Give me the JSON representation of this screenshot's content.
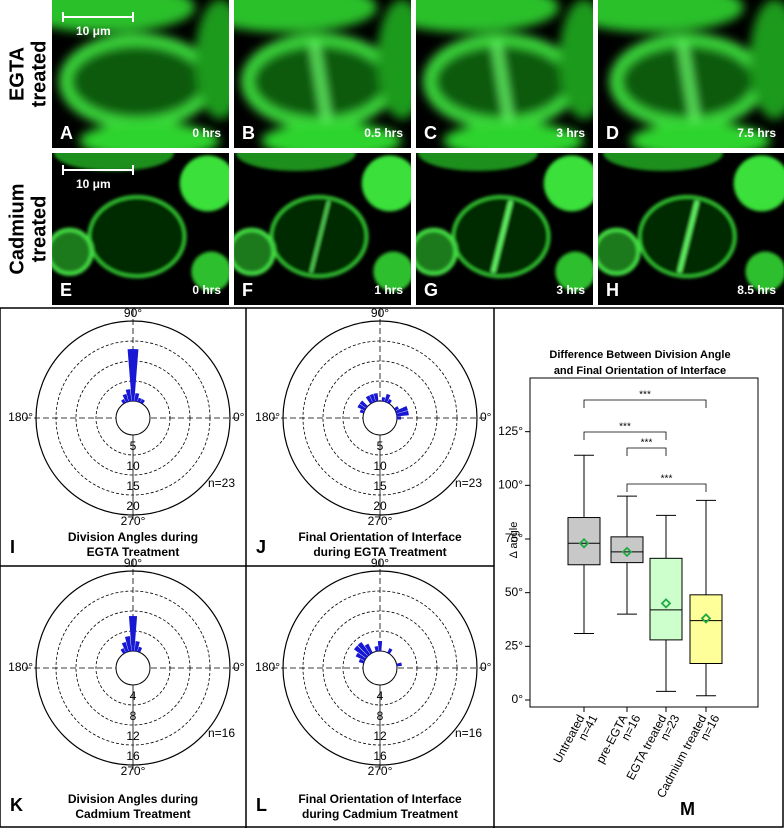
{
  "figure": {
    "rows": [
      {
        "label": [
          "EGTA",
          "treated"
        ],
        "scale_bar": "10 μm",
        "panels": [
          {
            "letter": "A",
            "time": "0 hrs"
          },
          {
            "letter": "B",
            "time": "0.5 hrs"
          },
          {
            "letter": "C",
            "time": "3 hrs"
          },
          {
            "letter": "D",
            "time": "7.5 hrs"
          }
        ]
      },
      {
        "label": [
          "Cadmium",
          "treated"
        ],
        "scale_bar": "10 μm",
        "panels": [
          {
            "letter": "E",
            "time": "0 hrs"
          },
          {
            "letter": "F",
            "time": "1 hrs"
          },
          {
            "letter": "G",
            "time": "3 hrs"
          },
          {
            "letter": "H",
            "time": "8.5 hrs"
          }
        ]
      }
    ]
  },
  "chart_data": [
    {
      "type": "rose",
      "letter": "I",
      "title": [
        "Division Angles during",
        "EGTA Treatment"
      ],
      "annotation": "n=23",
      "color": "#1818d4",
      "angles": [
        60,
        70,
        80,
        90,
        100,
        110,
        120
      ],
      "values": [
        1,
        1,
        2,
        13,
        3,
        2,
        1
      ],
      "rlim": [
        0,
        20
      ],
      "rticks": [
        5,
        10,
        15,
        20
      ],
      "angle_ticks": [
        {
          "value": 90,
          "label": "90°"
        },
        {
          "value": 0,
          "label": "0°"
        },
        {
          "value": 180,
          "label": "180°"
        },
        {
          "value": 270,
          "label": "270°"
        }
      ]
    },
    {
      "type": "rose",
      "letter": "J",
      "title": [
        "Final Orientation of Interface",
        "during EGTA Treatment"
      ],
      "annotation": "n=23",
      "color": "#1818d4",
      "angles": [
        0,
        10,
        20,
        30,
        60,
        70,
        80,
        100,
        110,
        120,
        140,
        150,
        160
      ],
      "values": [
        1,
        3,
        3,
        1,
        1,
        2,
        1,
        2,
        2,
        2,
        2,
        2,
        1
      ],
      "rlim": [
        0,
        20
      ],
      "rticks": [
        5,
        10,
        15,
        20
      ],
      "angle_ticks": [
        {
          "value": 90,
          "label": "90°"
        },
        {
          "value": 0,
          "label": "0°"
        },
        {
          "value": 180,
          "label": "180°"
        },
        {
          "value": 270,
          "label": "270°"
        }
      ]
    },
    {
      "type": "rose",
      "letter": "K",
      "title": [
        "Division Angles during",
        "Cadmium Treatment"
      ],
      "annotation": "n=16",
      "color": "#1818d4",
      "angles": [
        70,
        80,
        90,
        100,
        110,
        120
      ],
      "values": [
        1,
        2,
        7,
        3,
        2,
        1
      ],
      "rlim": [
        0,
        16
      ],
      "rticks": [
        4,
        8,
        12,
        16
      ],
      "angle_ticks": [
        {
          "value": 90,
          "label": "90°"
        },
        {
          "value": 0,
          "label": "0°"
        },
        {
          "value": 180,
          "label": "180°"
        },
        {
          "value": 270,
          "label": "270°"
        }
      ]
    },
    {
      "type": "rose",
      "letter": "L",
      "title": [
        "Final Orientation of Interface",
        "during Cadmium Treatment"
      ],
      "annotation": "n=16",
      "color": "#1818d4",
      "angles": [
        10,
        60,
        90,
        100,
        120,
        130,
        140,
        150,
        160
      ],
      "values": [
        1,
        1,
        2,
        1,
        2,
        3,
        3,
        2,
        1
      ],
      "rlim": [
        0,
        16
      ],
      "rticks": [
        4,
        8,
        12,
        16
      ],
      "angle_ticks": [
        {
          "value": 90,
          "label": "90°"
        },
        {
          "value": 0,
          "label": "0°"
        },
        {
          "value": 180,
          "label": "180°"
        },
        {
          "value": 270,
          "label": "270°"
        }
      ]
    },
    {
      "type": "box",
      "letter": "M",
      "title": [
        "Difference Between Division Angle",
        "and Final Orientation of Interface"
      ],
      "y_label": "Δ angle",
      "categories": [
        "Untreated",
        "pre-EGTA",
        "EGTA treated",
        "Cadmium treated"
      ],
      "n_labels": [
        "n=41",
        "n=16",
        "n=23",
        "n=16"
      ],
      "colors": [
        "#c8c8c8",
        "#c8c8c8",
        "#ccffcc",
        "#ffff99"
      ],
      "whisker_low": [
        31,
        40,
        4,
        2
      ],
      "q1": [
        63,
        64,
        28,
        17
      ],
      "median": [
        73,
        69,
        42,
        37
      ],
      "q3": [
        85,
        76,
        66,
        49
      ],
      "whisker_high": [
        114,
        95,
        86,
        93
      ],
      "mean": [
        73,
        69,
        45,
        38
      ],
      "mean_color": "#22aa44",
      "ylim": [
        0,
        150
      ],
      "yticks": [
        {
          "value": 0,
          "label": "0°"
        },
        {
          "value": 25,
          "label": "25°"
        },
        {
          "value": 50,
          "label": "50°"
        },
        {
          "value": 75,
          "label": "75°"
        },
        {
          "value": 100,
          "label": "100°"
        },
        {
          "value": 125,
          "label": "125°"
        }
      ],
      "significance": [
        "***",
        "***",
        "***",
        "***"
      ]
    }
  ]
}
